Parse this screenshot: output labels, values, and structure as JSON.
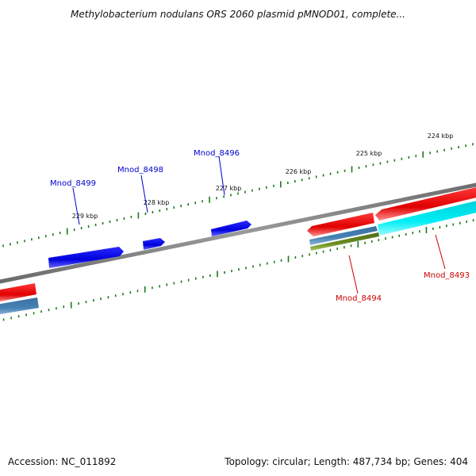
{
  "title": "Methylobacterium nodulans ORS 2060 plasmid pMNOD01, complete...",
  "footer": {
    "accession": "Accession: NC_011892",
    "summary": "Topology: circular; Length: 487,734 bp; Genes: 404"
  },
  "colors": {
    "backbone": "#808080",
    "tick": "#1a7a1a",
    "forward_gene": "#0000ee",
    "reverse_gene": "#ee0000",
    "cds_feature": "#4682b4",
    "rna_feature": "#6b8e23",
    "highlight_feature": "#00e5ee",
    "forward_label": "#0000cc",
    "reverse_label": "#cc0000"
  },
  "ruler": {
    "unit": "kbp",
    "labels": [
      "224 kbp",
      "225 kbp",
      "226 kbp",
      "227 kbp",
      "228 kbp",
      "229 kbp"
    ]
  },
  "genes": [
    {
      "name": "Mnod_8499",
      "strand": "forward",
      "color": "#0000ee"
    },
    {
      "name": "Mnod_8498",
      "strand": "forward",
      "color": "#0000ee"
    },
    {
      "name": "Mnod_8496",
      "strand": "forward",
      "color": "#0000ee"
    },
    {
      "name": "Mnod_8494",
      "strand": "reverse",
      "color": "#ee0000"
    },
    {
      "name": "Mnod_8493",
      "strand": "reverse",
      "color": "#ee0000"
    }
  ]
}
